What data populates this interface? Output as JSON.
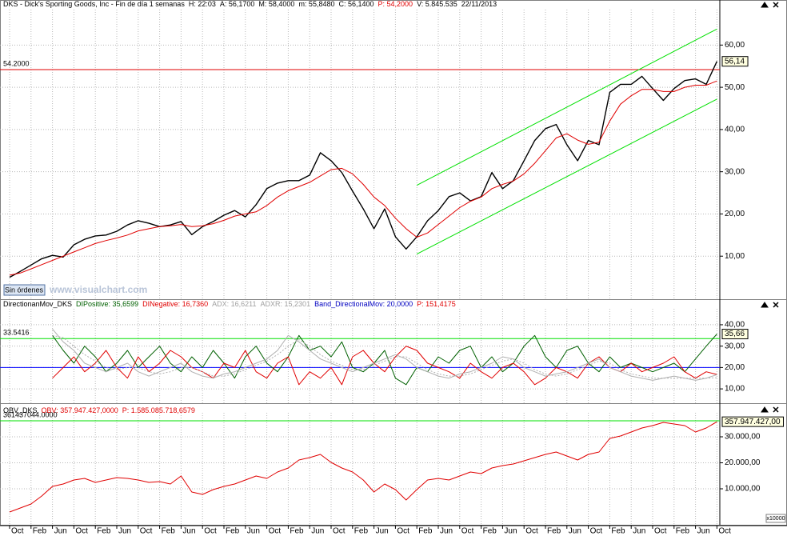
{
  "chart_data": [
    {
      "type": "line",
      "title_parts": [
        {
          "text": "DKS - Dick's Sporting Goods, Inc - Fin de día 1 semanas",
          "color": "#000000"
        },
        {
          "text": "H: 22:03",
          "color": "#000000"
        },
        {
          "text": "A: 56,1700",
          "color": "#000000"
        },
        {
          "text": "M: 58,4000",
          "color": "#000000"
        },
        {
          "text": "m: 55,8480",
          "color": "#000000"
        },
        {
          "text": "C: 56,1400",
          "color": "#000000"
        },
        {
          "text": "P: 54,2000",
          "color": "#e00000"
        },
        {
          "text": "V: 5.845.535",
          "color": "#000000"
        },
        {
          "text": "22/11/2013",
          "color": "#000000"
        }
      ],
      "categories": [
        "Oct",
        null,
        "Feb",
        null,
        "Jun",
        null,
        "Oct",
        null,
        "Feb",
        null,
        "Jun",
        null,
        "Oct",
        null,
        "Feb",
        null,
        "Jun",
        null,
        "Oct",
        null,
        "Feb",
        null,
        "Jun",
        null,
        "Oct",
        null,
        "Feb",
        null,
        "Jun",
        null,
        "Oct",
        null,
        "Feb",
        null,
        "Jun",
        null,
        "Oct",
        null,
        "Feb",
        null,
        "Jun",
        null,
        "Oct",
        null,
        "Feb",
        null,
        "Jun",
        null,
        "Oct",
        null,
        "Feb",
        null,
        "Jun",
        null,
        "Oct",
        null,
        "Feb",
        null,
        "Jun",
        null,
        "Oct",
        null,
        "Feb",
        null,
        "Jun",
        null,
        "Oct"
      ],
      "series": [
        {
          "color": "#000000",
          "width": 1.4,
          "values": [
            5,
            6.4,
            7.9,
            9.4,
            10.2,
            9.8,
            12.7,
            14,
            14.8,
            15,
            15.9,
            17.4,
            18.4,
            17.8,
            17,
            17.4,
            18.2,
            15.1,
            17,
            18.2,
            19.7,
            20.8,
            19.3,
            22.2,
            26,
            27.3,
            27.9,
            27.9,
            29.2,
            34.5,
            32.6,
            29.8,
            25.4,
            21.2,
            16.5,
            21.2,
            14.6,
            11.7,
            14.6,
            18.4,
            20.8,
            24.1,
            25,
            23.1,
            24.1,
            29.8,
            26,
            27.9,
            32.6,
            37.4,
            40.2,
            41.2,
            36.4,
            32.6,
            37.4,
            36.4,
            48.8,
            50.7,
            50.7,
            52.6,
            49.7,
            46.9,
            49.7,
            51.6,
            52,
            50.7,
            56.14
          ]
        },
        {
          "color": "#e00000",
          "width": 1,
          "values": [
            5.5,
            6,
            7,
            8,
            9,
            10,
            11,
            12,
            13,
            13.7,
            14.3,
            15,
            16,
            16.5,
            17,
            17.2,
            17.5,
            17,
            17.2,
            17.7,
            18.5,
            19.5,
            20,
            20.5,
            22,
            24,
            25.5,
            26.5,
            27.5,
            29,
            30.5,
            30.8,
            29.5,
            27,
            24,
            22,
            19,
            16.5,
            14.5,
            15.5,
            17.5,
            19.5,
            21.5,
            23,
            24,
            26,
            27,
            27.8,
            29.5,
            32,
            35,
            38,
            39,
            37.5,
            36.5,
            37,
            42,
            46,
            48,
            49.5,
            49.5,
            49,
            49,
            50,
            50.5,
            50.5,
            51.5
          ]
        }
      ],
      "trend_lines": [
        {
          "color": "#00e000",
          "x": [
            38,
            66
          ],
          "values": [
            26.8,
            63.8
          ]
        },
        {
          "color": "#00e000",
          "x": [
            38,
            66
          ],
          "values": [
            10.5,
            47.2
          ]
        }
      ],
      "levels": [
        {
          "value": 54.2,
          "label": "54.2000",
          "color": "#e00000",
          "label_color": "#0000c0"
        }
      ],
      "last_value": {
        "value": 56.14,
        "label": "56,14"
      },
      "ylim": [
        0,
        68.4
      ],
      "yticks": [
        {
          "value": 10,
          "label": "10,00"
        },
        {
          "value": 20,
          "label": "20,00"
        },
        {
          "value": 30,
          "label": "30,00"
        },
        {
          "value": 40,
          "label": "40,00"
        },
        {
          "value": 50,
          "label": "50,00"
        },
        {
          "value": 60,
          "label": "60,00"
        }
      ],
      "grid": true
    },
    {
      "type": "line",
      "title_parts": [
        {
          "text": "DirectionanMov_DKS",
          "color": "#000000"
        },
        {
          "text": "DIPositive: 35,6599",
          "color": "#006000"
        },
        {
          "text": "DINegative: 16,7360",
          "color": "#e00000"
        },
        {
          "text": "ADX: 16,6211",
          "color": "#a0a0a0"
        },
        {
          "text": "ADXR: 15,2301",
          "color": "#a0a0a0"
        },
        {
          "text": "Band_DirectionalMov: 20,0000",
          "color": "#0000c0"
        },
        {
          "text": "P: 151,4175",
          "color": "#e00000"
        }
      ],
      "series": [
        {
          "color": "#006000",
          "width": 1,
          "values": [
            null,
            null,
            null,
            null,
            35,
            28,
            22,
            30,
            25,
            18,
            22,
            28,
            20,
            25,
            30,
            22,
            18,
            25,
            20,
            28,
            22,
            15,
            25,
            30,
            22,
            18,
            25,
            35,
            28,
            30,
            25,
            32,
            20,
            18,
            22,
            28,
            15,
            12,
            20,
            18,
            25,
            22,
            28,
            30,
            20,
            25,
            18,
            22,
            30,
            35,
            25,
            20,
            28,
            30,
            22,
            18,
            25,
            20,
            22,
            20,
            18,
            20,
            22,
            18,
            24,
            30,
            35.66
          ]
        },
        {
          "color": "#e00000",
          "width": 1,
          "values": [
            null,
            null,
            null,
            null,
            15,
            20,
            25,
            18,
            22,
            28,
            20,
            15,
            25,
            18,
            22,
            28,
            25,
            20,
            18,
            15,
            22,
            20,
            28,
            18,
            15,
            22,
            25,
            12,
            18,
            15,
            20,
            12,
            25,
            28,
            22,
            18,
            25,
            30,
            28,
            22,
            20,
            18,
            15,
            22,
            18,
            15,
            20,
            22,
            18,
            12,
            15,
            20,
            18,
            15,
            22,
            25,
            20,
            18,
            22,
            18,
            20,
            22,
            25,
            18,
            15,
            18,
            16.74
          ]
        },
        {
          "color": "#b0b0b0",
          "width": 1,
          "values": [
            null,
            null,
            null,
            null,
            38,
            32,
            28,
            22,
            20,
            18,
            20,
            22,
            18,
            16,
            18,
            20,
            22,
            18,
            16,
            15,
            17,
            18,
            20,
            22,
            24,
            28,
            35,
            32,
            28,
            24,
            22,
            20,
            18,
            20,
            22,
            24,
            26,
            24,
            20,
            18,
            16,
            15,
            17,
            18,
            20,
            22,
            25,
            24,
            20,
            18,
            16,
            17,
            18,
            20,
            22,
            24,
            20,
            18,
            16,
            15,
            14,
            15,
            16,
            15,
            14,
            15,
            16.62
          ]
        },
        {
          "color": "#b0b0b0",
          "width": 1,
          "dashed": true,
          "values": [
            null,
            null,
            null,
            null,
            35,
            34,
            30,
            26,
            23,
            20,
            19,
            20,
            20,
            18,
            17,
            18,
            20,
            20,
            18,
            16,
            16,
            17,
            19,
            21,
            23,
            26,
            30,
            33,
            30,
            26,
            23,
            21,
            19,
            19,
            21,
            23,
            25,
            25,
            22,
            19,
            17,
            16,
            16,
            17,
            19,
            21,
            23,
            24,
            22,
            19,
            17,
            16,
            17,
            19,
            21,
            23,
            22,
            19,
            17,
            16,
            15,
            15,
            15,
            15,
            15,
            15,
            15.23
          ]
        }
      ],
      "levels": [
        {
          "value": 33.5416,
          "label": "33.5416",
          "color": "#00e000",
          "label_color": "#0000c0"
        },
        {
          "value": 20,
          "color": "#0000ff"
        }
      ],
      "last_value": {
        "value": 35.66,
        "label": "35,66"
      },
      "ylim": [
        4.8,
        51.2
      ],
      "yticks": [
        {
          "value": 10,
          "label": "10,00"
        },
        {
          "value": 20,
          "label": "20,00"
        },
        {
          "value": 30,
          "label": "30,00"
        },
        {
          "value": 40,
          "label": "40,00"
        }
      ],
      "grid": true
    },
    {
      "type": "line",
      "title_parts": [
        {
          "text": "OBV_DKS",
          "color": "#000000"
        },
        {
          "text": "OBV: 357.947.427,0000",
          "color": "#e00000"
        },
        {
          "text": "P: 1.585.085.718,6579",
          "color": "#e00000"
        }
      ],
      "series": [
        {
          "color": "#e00000",
          "width": 1,
          "values": [
            1077,
            2615,
            4150,
            7230,
            10920,
            11850,
            13380,
            14000,
            12460,
            13380,
            14300,
            14000,
            13380,
            12460,
            12770,
            11850,
            14920,
            8770,
            7850,
            9690,
            10920,
            11850,
            13380,
            14920,
            14000,
            16460,
            18000,
            21080,
            22000,
            23230,
            20150,
            18000,
            16460,
            13380,
            8770,
            11850,
            9690,
            5690,
            9690,
            13380,
            14000,
            13380,
            14920,
            16460,
            15850,
            18000,
            18920,
            19540,
            20770,
            22000,
            23230,
            24150,
            22620,
            21080,
            23230,
            24150,
            29380,
            30310,
            31850,
            33380,
            34310,
            35540,
            34920,
            34310,
            31850,
            33380,
            35794.7427
          ]
        }
      ],
      "levels": [
        {
          "value": 36143.7044,
          "label": "361437044.0000",
          "color": "#00e000",
          "label_color": "#0000c0"
        }
      ],
      "last_value": {
        "value": 35794.7427,
        "label": "357.947.427,00"
      },
      "axis_unit": "x10000",
      "ylim": [
        -3540,
        42920
      ],
      "yticks": [
        {
          "value": 10000,
          "label": "10.000,00"
        },
        {
          "value": 20000,
          "label": "20.000,00"
        },
        {
          "value": 30000,
          "label": "30.000,00"
        }
      ],
      "grid": true
    }
  ],
  "ui": {
    "orders_button": "Sin órdenes",
    "watermark": "www.visualchart.com"
  }
}
